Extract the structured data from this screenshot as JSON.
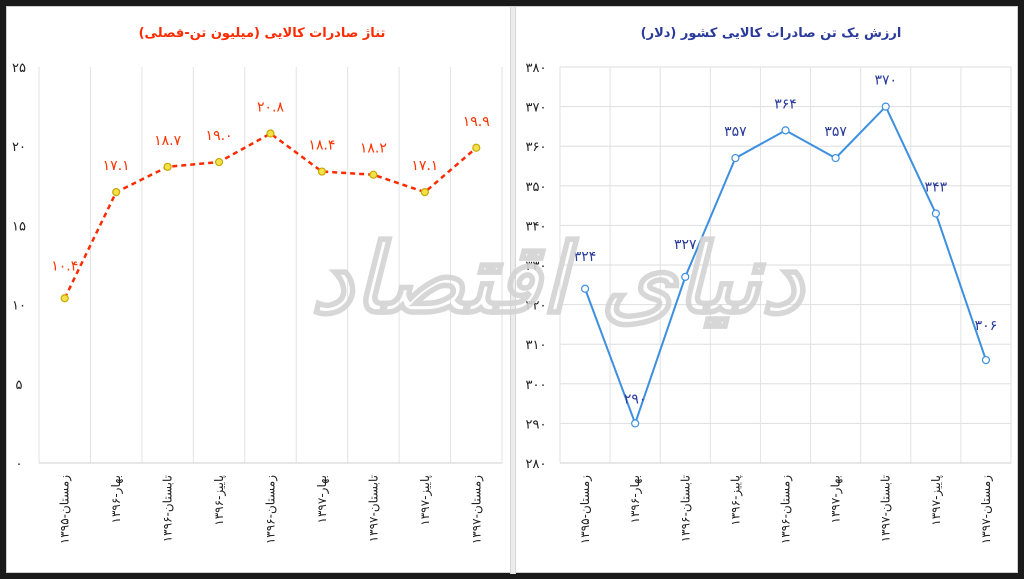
{
  "chart_data": [
    {
      "type": "line",
      "title": "تناژ صادرات کالایی (میلیون تن-فصلی)",
      "categories": [
        "۱۳۹۵-زمستان",
        "۱۳۹۶-بهار",
        "۱۳۹۶-تابستان",
        "۱۳۹۶-پاییز",
        "۱۳۹۶-زمستان",
        "۱۳۹۷-بهار",
        "۱۳۹۷-تابستان",
        "۱۳۹۷-پاییز",
        "۱۳۹۷-زمستان"
      ],
      "values": [
        10.4,
        17.1,
        18.7,
        19.0,
        20.8,
        18.4,
        18.2,
        17.1,
        19.9
      ],
      "value_labels": [
        "۱۰.۴",
        "۱۷.۱",
        "۱۸.۷",
        "۱۹.۰",
        "۲۰.۸",
        "۱۸.۴",
        "۱۸.۲",
        "۱۷.۱",
        "۱۹.۹"
      ],
      "ylim": [
        0,
        25
      ],
      "yticks": [
        "۰",
        "۵",
        "۱۰",
        "۱۵",
        "۲۰",
        "۲۵"
      ],
      "xlabel": "",
      "ylabel": "",
      "grid": "vertical",
      "line_color": "#ff2a00",
      "marker_color": "#f2e14a",
      "label_color": "#ff3300"
    },
    {
      "type": "line",
      "title": "ارزش یک تن صادرات کالایی کشور (دلار)",
      "categories": [
        "۱۳۹۵-زمستان",
        "۱۳۹۶-بهار",
        "۱۳۹۶-تابستان",
        "۱۳۹۶-پاییز",
        "۱۳۹۶-زمستان",
        "۱۳۹۷-بهار",
        "۱۳۹۷-تابستان",
        "۱۳۹۷-پاییز",
        "۱۳۹۷-زمستان"
      ],
      "values": [
        324,
        290,
        327,
        357,
        364,
        357,
        370,
        343,
        306
      ],
      "value_labels": [
        "۳۲۴",
        "۲۹۰",
        "۳۲۷",
        "۳۵۷",
        "۳۶۴",
        "۳۵۷",
        "۳۷۰",
        "۳۴۳",
        "۳۰۶"
      ],
      "ylim": [
        280,
        380
      ],
      "yticks": [
        "۲۸۰",
        "۲۹۰",
        "۳۰۰",
        "۳۱۰",
        "۳۲۰",
        "۳۳۰",
        "۳۴۰",
        "۳۵۰",
        "۳۶۰",
        "۳۷۰",
        "۳۸۰"
      ],
      "xlabel": "",
      "ylabel": "",
      "grid": "both",
      "line_color": "#3d8fe0",
      "marker_color": "#ffffff",
      "label_color": "#2a3a9a"
    }
  ],
  "watermark": {
    "text": "دنیای اقتصاد",
    "color": "#d0d0d0"
  }
}
